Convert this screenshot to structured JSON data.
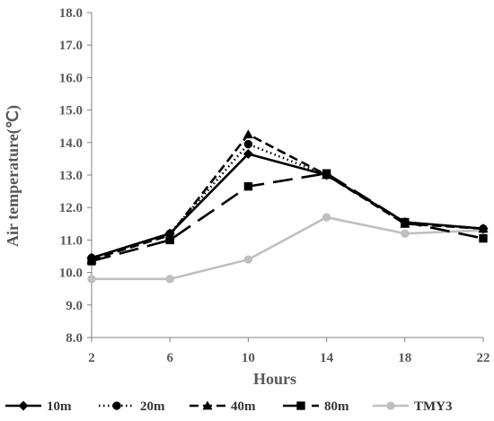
{
  "chart_data": {
    "type": "line",
    "xlabel": "Hours",
    "ylabel": "Air temperature(℃)",
    "x": [
      2,
      6,
      10,
      14,
      18,
      22
    ],
    "xticks": [
      "2",
      "6",
      "10",
      "14",
      "18",
      "22"
    ],
    "ylim": [
      8.0,
      18.0
    ],
    "yticks": [
      "8.0",
      "9.0",
      "10.0",
      "11.0",
      "12.0",
      "13.0",
      "14.0",
      "15.0",
      "16.0",
      "17.0",
      "18.0"
    ],
    "grid": false,
    "legend": "bottom",
    "series": [
      {
        "name": "10m",
        "values": [
          10.45,
          11.2,
          13.65,
          13.0,
          11.55,
          11.35
        ],
        "color": "#000000",
        "dash": "solid",
        "marker": "diamond"
      },
      {
        "name": "20m",
        "values": [
          10.45,
          11.2,
          13.95,
          13.0,
          11.55,
          11.35
        ],
        "color": "#000000",
        "dash": "dotted",
        "marker": "circle"
      },
      {
        "name": "40m",
        "values": [
          10.4,
          11.15,
          14.25,
          13.0,
          11.5,
          11.35
        ],
        "color": "#000000",
        "dash": "dashed",
        "marker": "triangle"
      },
      {
        "name": "80m",
        "values": [
          10.35,
          11.0,
          12.65,
          13.05,
          11.55,
          11.05
        ],
        "color": "#000000",
        "dash": "longdash",
        "marker": "square"
      },
      {
        "name": "TMY3",
        "values": [
          9.8,
          9.8,
          10.4,
          11.7,
          11.2,
          11.3
        ],
        "color": "#bfbfbf",
        "dash": "solid",
        "marker": "circle"
      }
    ]
  }
}
